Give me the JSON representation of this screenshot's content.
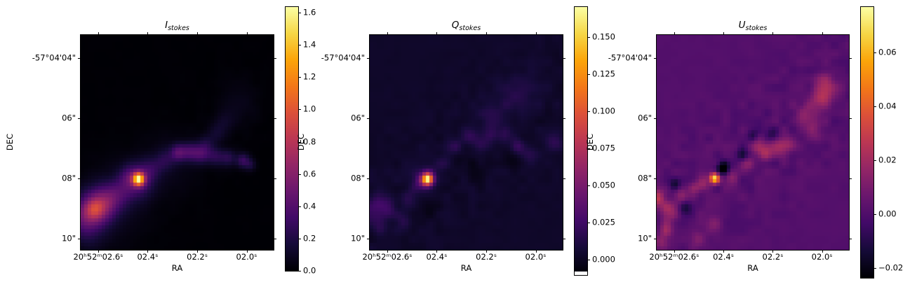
{
  "figure": {
    "background": "#ffffff",
    "colormap": "inferno",
    "text_color": "#000000"
  },
  "chart_data": [
    {
      "type": "heatmap",
      "title": "I",
      "title_subscript": "stokes",
      "xlabel": "RA",
      "ylabel": "DEC",
      "x_tick_labels": [
        "20ʰ52ᵐ02.6ˢ",
        "02.4ˢ",
        "02.2ˢ",
        "02.0ˢ"
      ],
      "y_tick_labels": [
        "-57°04'04\"",
        "06\"",
        "08\"",
        "10\""
      ],
      "colorbar": {
        "vmin": 0.0,
        "vmax": 1.635,
        "tick_values": [
          1.6,
          1.4,
          1.2,
          1.0,
          0.8,
          0.6,
          0.4,
          0.2,
          0.0
        ],
        "tick_labels": [
          "1.6",
          "1.4",
          "1.2",
          "1.0",
          "0.8",
          "0.6",
          "0.4",
          "0.2",
          "0.0"
        ],
        "white_strip_bottom": false
      },
      "image": {
        "background_value": 0.004,
        "noise": {
          "seed": 11,
          "amplitude": 0.01,
          "scale": 2.6,
          "band": {
            "x0": 0.0,
            "y0": 0.85,
            "x1": 0.95,
            "y1": 0.3,
            "sigma": 0.18,
            "floor": 0.25
          }
        },
        "features_format": [
          "x_frac",
          "y_frac",
          "sigma",
          "amplitude"
        ],
        "features": [
          [
            0.3,
            0.672,
            0.02,
            1.3
          ],
          [
            0.3,
            0.672,
            0.05,
            0.28
          ],
          [
            0.272,
            0.69,
            0.065,
            0.16
          ],
          [
            0.245,
            0.66,
            0.03,
            0.12
          ],
          [
            0.085,
            0.8,
            0.058,
            0.42
          ],
          [
            0.072,
            0.81,
            0.032,
            0.28
          ],
          [
            0.135,
            0.775,
            0.05,
            0.22
          ],
          [
            0.01,
            0.845,
            0.055,
            0.28
          ],
          [
            0.04,
            0.92,
            0.06,
            0.12
          ],
          [
            0.195,
            0.735,
            0.045,
            0.17
          ],
          [
            0.365,
            0.625,
            0.038,
            0.14
          ],
          [
            0.435,
            0.585,
            0.035,
            0.16
          ],
          [
            0.505,
            0.548,
            0.028,
            0.34
          ],
          [
            0.565,
            0.545,
            0.03,
            0.28
          ],
          [
            0.625,
            0.552,
            0.032,
            0.33
          ],
          [
            0.7,
            0.565,
            0.03,
            0.22
          ],
          [
            0.765,
            0.572,
            0.028,
            0.22
          ],
          [
            0.84,
            0.585,
            0.024,
            0.28
          ],
          [
            0.88,
            0.605,
            0.02,
            0.16
          ],
          [
            0.655,
            0.505,
            0.03,
            0.13
          ],
          [
            0.705,
            0.455,
            0.032,
            0.11
          ],
          [
            0.75,
            0.405,
            0.035,
            0.09
          ],
          [
            0.82,
            0.32,
            0.075,
            0.055
          ],
          [
            0.46,
            0.6,
            0.1,
            0.07
          ],
          [
            0.15,
            0.8,
            0.12,
            0.1
          ]
        ]
      }
    },
    {
      "type": "heatmap",
      "title": "Q",
      "title_subscript": "stokes",
      "xlabel": "RA",
      "ylabel": "DEC",
      "x_tick_labels": [
        "20ʰ52ᵐ02.6ˢ",
        "02.4ˢ",
        "02.2ˢ",
        "02.0ˢ"
      ],
      "y_tick_labels": [
        "-57°04'04\"",
        "06\"",
        "08\"",
        "10\""
      ],
      "colorbar": {
        "vmin": -0.0104,
        "vmax": 0.1703,
        "tick_values": [
          0.15,
          0.125,
          0.1,
          0.075,
          0.05,
          0.025,
          0.0
        ],
        "tick_labels": [
          "0.150",
          "0.125",
          "0.100",
          "0.075",
          "0.050",
          "0.025",
          "0.000"
        ],
        "white_strip_bottom": true
      },
      "image": {
        "background_value": 0.0025,
        "noise": {
          "seed": 23,
          "amplitude": 0.0042,
          "scale": 2.4,
          "band": {
            "x0": 0.0,
            "y0": 0.85,
            "x1": 0.95,
            "y1": 0.3,
            "sigma": 0.2,
            "floor": 0.15
          }
        },
        "features_format": [
          "x_frac",
          "y_frac",
          "sigma",
          "amplitude"
        ],
        "features": [
          [
            0.3,
            0.672,
            0.019,
            0.15
          ],
          [
            0.3,
            0.672,
            0.04,
            0.02
          ],
          [
            0.263,
            0.685,
            0.028,
            0.022
          ],
          [
            0.04,
            0.775,
            0.032,
            0.016
          ],
          [
            0.095,
            0.8,
            0.028,
            0.02
          ],
          [
            0.0,
            0.83,
            0.04,
            0.018
          ],
          [
            0.055,
            0.88,
            0.03,
            0.013
          ],
          [
            0.165,
            0.865,
            0.03,
            0.011
          ],
          [
            0.205,
            0.76,
            0.028,
            0.012
          ],
          [
            0.37,
            0.6,
            0.026,
            0.011
          ],
          [
            0.445,
            0.52,
            0.028,
            0.013
          ],
          [
            0.52,
            0.47,
            0.026,
            0.016
          ],
          [
            0.575,
            0.5,
            0.028,
            0.013
          ],
          [
            0.63,
            0.455,
            0.028,
            0.014
          ],
          [
            0.7,
            0.47,
            0.026,
            0.013
          ],
          [
            0.77,
            0.52,
            0.024,
            0.019
          ],
          [
            0.83,
            0.555,
            0.028,
            0.011
          ],
          [
            0.96,
            0.5,
            0.03,
            0.014
          ],
          [
            0.62,
            0.38,
            0.05,
            0.009
          ],
          [
            0.72,
            0.3,
            0.06,
            0.008
          ],
          [
            0.81,
            0.25,
            0.06,
            0.007
          ],
          [
            0.48,
            0.575,
            0.03,
            -0.007
          ],
          [
            0.745,
            0.58,
            0.033,
            -0.007
          ],
          [
            0.3,
            0.81,
            0.038,
            -0.006
          ],
          [
            0.56,
            0.64,
            0.04,
            -0.005
          ]
        ]
      }
    },
    {
      "type": "heatmap",
      "title": "U",
      "title_subscript": "stokes",
      "xlabel": "RA",
      "ylabel": "DEC",
      "x_tick_labels": [
        "20ʰ52ᵐ02.6ˢ",
        "02.4ˢ",
        "02.2ˢ",
        "02.0ˢ"
      ],
      "y_tick_labels": [
        "-57°04'04\"",
        "06\"",
        "08\"",
        "10\""
      ],
      "colorbar": {
        "vmin": -0.0236,
        "vmax": 0.0769,
        "tick_values": [
          0.06,
          0.04,
          0.02,
          0.0,
          -0.02
        ],
        "tick_labels": [
          "0.06",
          "0.04",
          "0.02",
          "0.00",
          "−0.02"
        ],
        "white_strip_bottom": false
      },
      "image": {
        "background_value": 0.0008,
        "noise": {
          "seed": 37,
          "amplitude": 0.0045,
          "scale": 2.4,
          "band": {
            "x0": 0.0,
            "y0": 0.9,
            "x1": 1.0,
            "y1": 0.22,
            "sigma": 0.2,
            "floor": 0.12
          }
        },
        "features_format": [
          "x_frac",
          "y_frac",
          "sigma",
          "amplitude"
        ],
        "features": [
          [
            0.3,
            0.668,
            0.017,
            0.068
          ],
          [
            0.345,
            0.62,
            0.022,
            -0.03
          ],
          [
            0.445,
            0.56,
            0.02,
            -0.022
          ],
          [
            0.24,
            0.685,
            0.024,
            0.02
          ],
          [
            0.195,
            0.715,
            0.022,
            0.012
          ],
          [
            0.0,
            0.76,
            0.03,
            0.024
          ],
          [
            0.06,
            0.82,
            0.032,
            0.018
          ],
          [
            0.125,
            0.745,
            0.026,
            0.013
          ],
          [
            0.045,
            0.905,
            0.028,
            0.015
          ],
          [
            0.15,
            0.805,
            0.024,
            -0.013
          ],
          [
            0.095,
            0.7,
            0.02,
            -0.015
          ],
          [
            0.03,
            0.97,
            0.028,
            0.014
          ],
          [
            0.215,
            0.95,
            0.028,
            0.012
          ],
          [
            0.3,
            0.88,
            0.028,
            0.011
          ],
          [
            0.385,
            0.66,
            0.026,
            0.012
          ],
          [
            0.47,
            0.6,
            0.026,
            0.013
          ],
          [
            0.53,
            0.52,
            0.026,
            0.015
          ],
          [
            0.565,
            0.555,
            0.024,
            0.016
          ],
          [
            0.625,
            0.52,
            0.03,
            0.019
          ],
          [
            0.69,
            0.505,
            0.028,
            0.013
          ],
          [
            0.6,
            0.465,
            0.024,
            -0.012
          ],
          [
            0.5,
            0.47,
            0.02,
            -0.013
          ],
          [
            0.78,
            0.37,
            0.038,
            0.016
          ],
          [
            0.85,
            0.295,
            0.034,
            0.019
          ],
          [
            0.905,
            0.255,
            0.038,
            0.012
          ],
          [
            0.82,
            0.44,
            0.028,
            0.012
          ],
          [
            0.87,
            0.21,
            0.03,
            0.01
          ]
        ]
      }
    }
  ]
}
